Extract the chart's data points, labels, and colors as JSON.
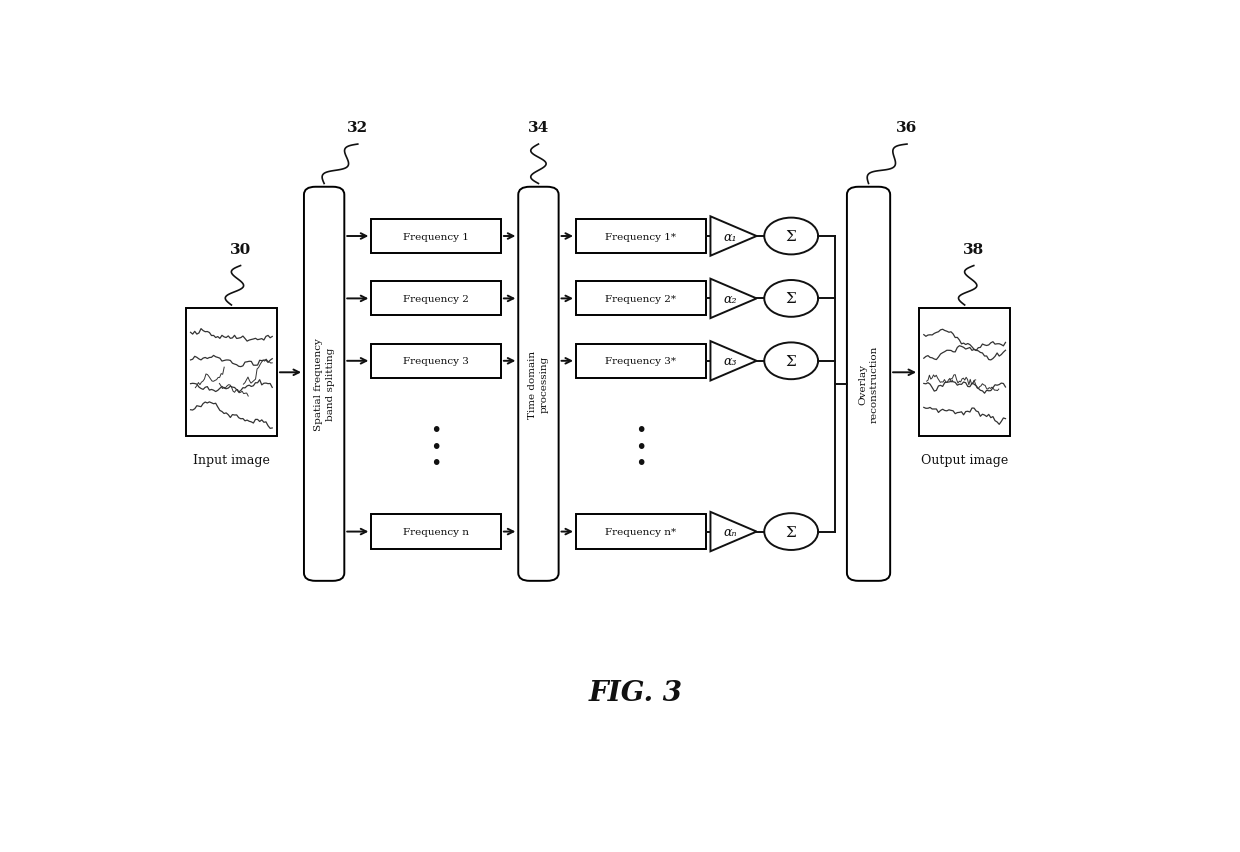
{
  "title": "FIG. 3",
  "bg_color": "#ffffff",
  "line_color": "#111111",
  "fig_width": 12.4,
  "fig_height": 8.53,
  "freq_labels_left": [
    "Frequency 1",
    "Frequency 2",
    "Frequency 3",
    "Frequency n"
  ],
  "freq_labels_right": [
    "Frequency 1*",
    "Frequency 2*",
    "Frequency 3*",
    "Frequency n*"
  ],
  "alpha_labels": [
    "α₁",
    "α₂",
    "α₃",
    "αₙ"
  ],
  "ref_nums": [
    "30",
    "32",
    "34",
    "36",
    "38"
  ],
  "block_labels": [
    "Spatial frequency\nband splitting",
    "Time domain\nprocessing",
    "Overlay\nreconstruction"
  ],
  "bottom_labels": [
    "Input image",
    "Output image"
  ]
}
